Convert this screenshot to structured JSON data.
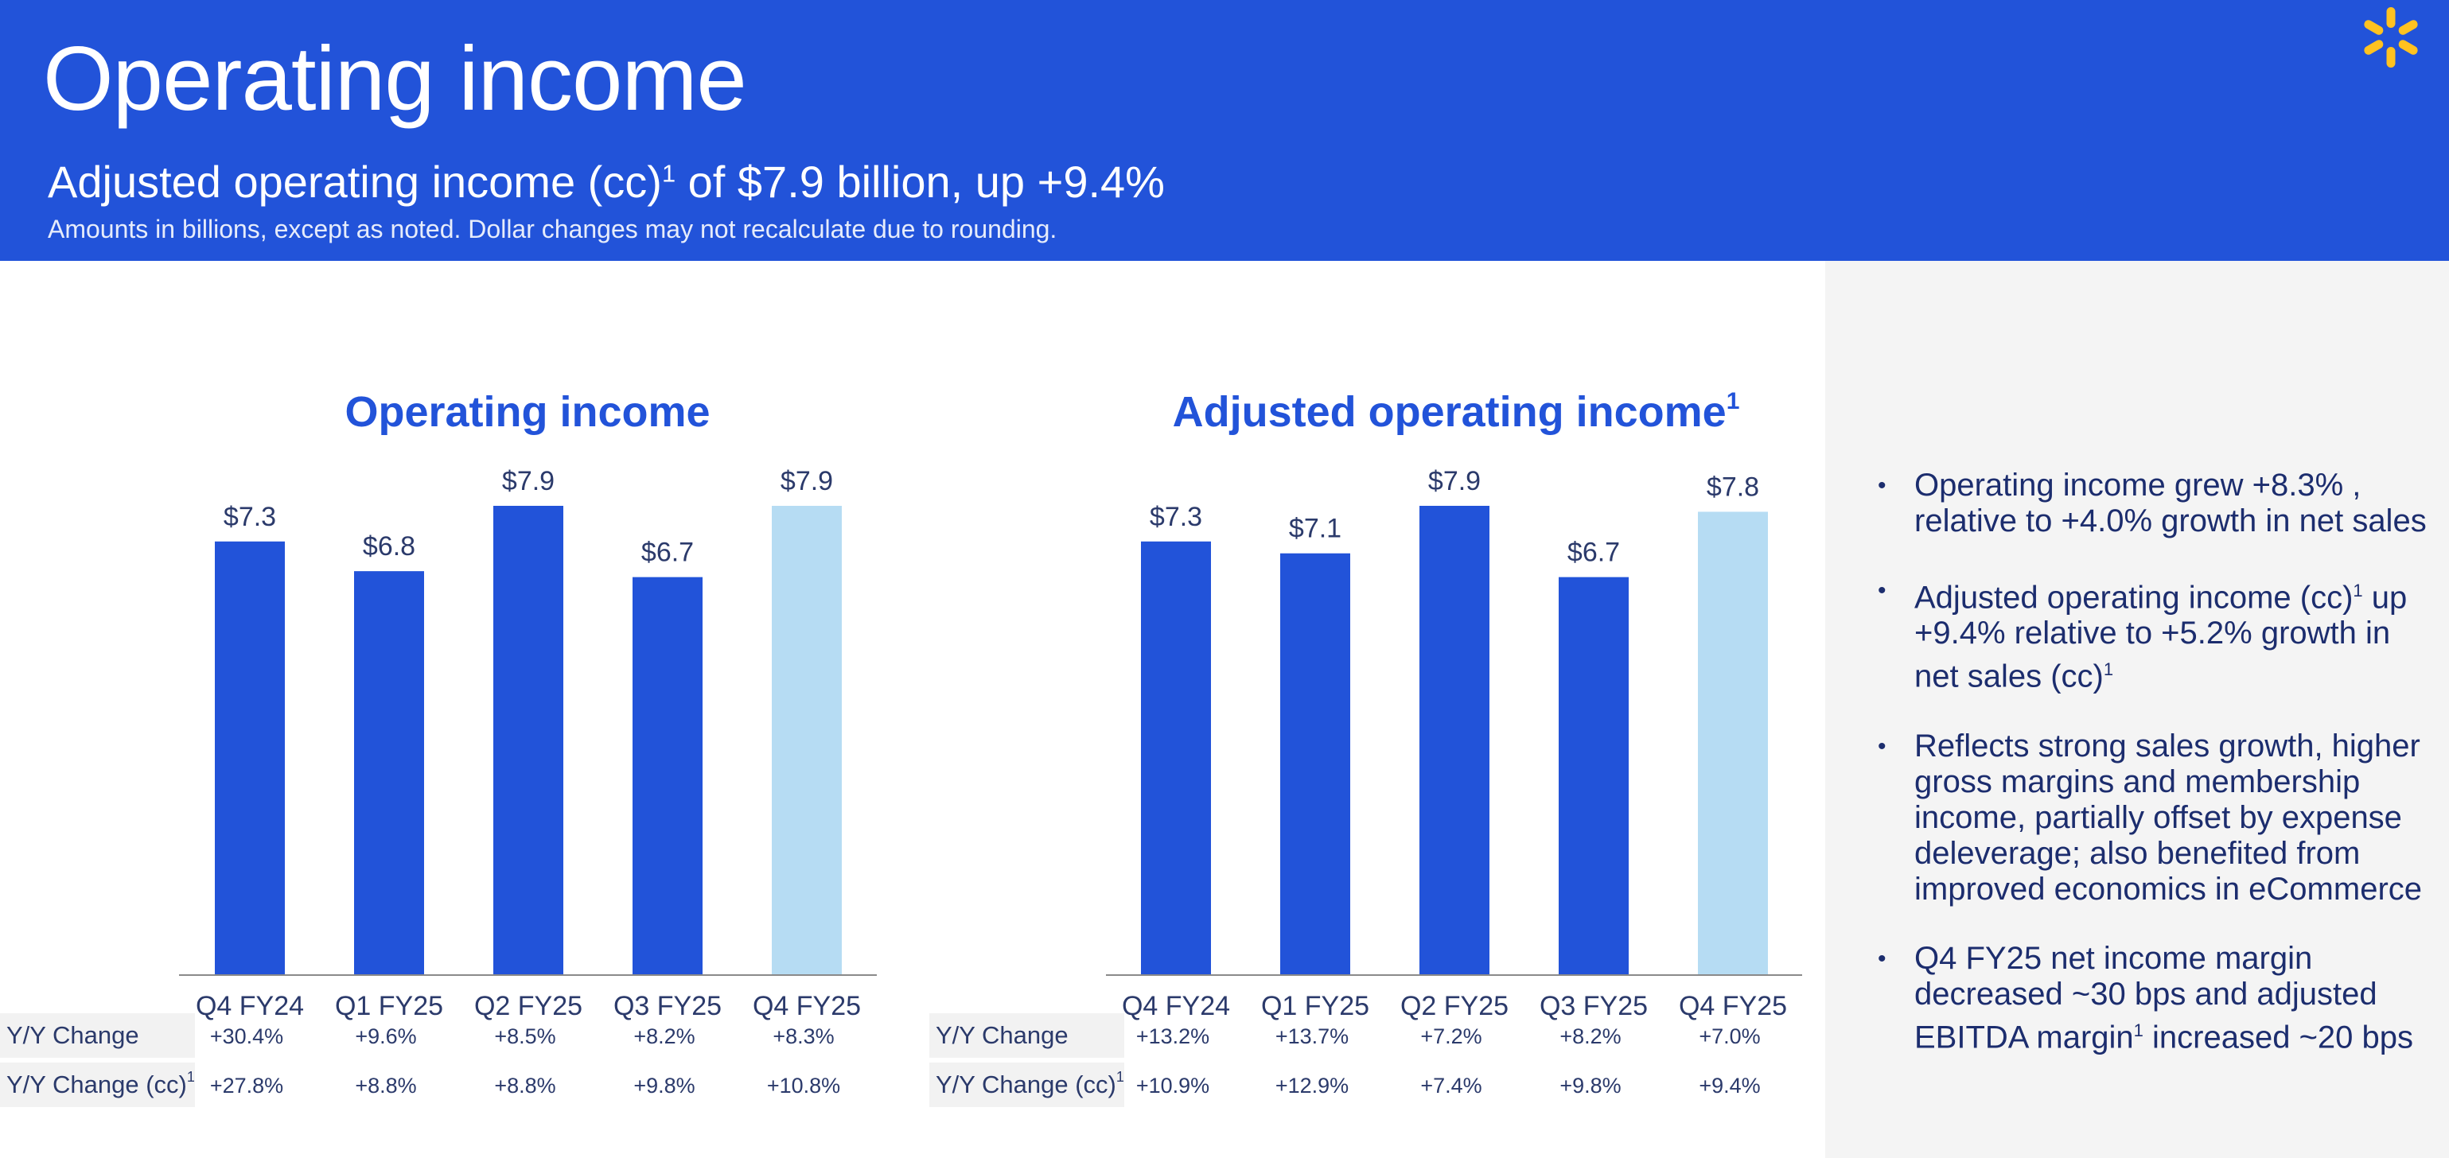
{
  "header": {
    "title": "Operating income",
    "subtitle": "Adjusted operating income (cc)",
    "subtitle_sup": "1",
    "subtitle_rest": " of $7.9 billion, up +9.4%",
    "note": "Amounts in billions, except as noted.  Dollar changes may not recalculate due to rounding."
  },
  "colors": {
    "bar": "#2253d9",
    "bar_highlight": "#b6dcf3",
    "header_bg": "#2253d9",
    "spark": "#ffc220"
  },
  "chart_data": [
    {
      "type": "bar",
      "title": "Operating income",
      "title_sup": "",
      "categories": [
        "Q4 FY24",
        "Q1 FY25",
        "Q2 FY25",
        "Q3 FY25",
        "Q4 FY25"
      ],
      "values": [
        7.3,
        6.8,
        7.9,
        6.7,
        7.9
      ],
      "value_labels": [
        "$7.3",
        "$6.8",
        "$7.9",
        "$6.7",
        "$7.9"
      ],
      "highlight_index": 4,
      "ylim": [
        0,
        7.9
      ],
      "table": [
        {
          "label": "Y/Y Change",
          "sup": "",
          "values": [
            "+30.4%",
            "+9.6%",
            "+8.5%",
            "+8.2%",
            "+8.3%"
          ]
        },
        {
          "label": "Y/Y Change (cc)",
          "sup": "1",
          "values": [
            "+27.8%",
            "+8.8%",
            "+8.8%",
            "+9.8%",
            "+10.8%"
          ]
        }
      ]
    },
    {
      "type": "bar",
      "title": "Adjusted operating income",
      "title_sup": "1",
      "categories": [
        "Q4 FY24",
        "Q1 FY25",
        "Q2 FY25",
        "Q3 FY25",
        "Q4 FY25"
      ],
      "values": [
        7.3,
        7.1,
        7.9,
        6.7,
        7.8
      ],
      "value_labels": [
        "$7.3",
        "$7.1",
        "$7.9",
        "$6.7",
        "$7.8"
      ],
      "highlight_index": 4,
      "ylim": [
        0,
        7.9
      ],
      "table": [
        {
          "label": "Y/Y Change",
          "sup": "",
          "values": [
            "+13.2%",
            "+13.7%",
            "+7.2%",
            "+8.2%",
            "+7.0%"
          ]
        },
        {
          "label": "Y/Y Change (cc)",
          "sup": "1",
          "values": [
            "+10.9%",
            "+12.9%",
            "+7.4%",
            "+9.8%",
            "+9.4%"
          ]
        }
      ]
    }
  ],
  "bullets": [
    {
      "text": "Operating income grew +8.3% , relative to +4.0% growth in net sales"
    },
    {
      "text": "Adjusted operating income (cc)",
      "sup": "1",
      "text2": " up +9.4% relative to +5.2% growth in net sales (cc)",
      "sup2": "1"
    },
    {
      "text": "Reflects strong sales growth, higher gross margins and membership income, partially offset by expense deleverage; also benefited from improved economics in eCommerce"
    },
    {
      "text": "Q4 FY25 net income margin decreased ~30 bps and adjusted EBITDA margin",
      "sup": "1",
      "text2": " increased ~20 bps"
    }
  ]
}
